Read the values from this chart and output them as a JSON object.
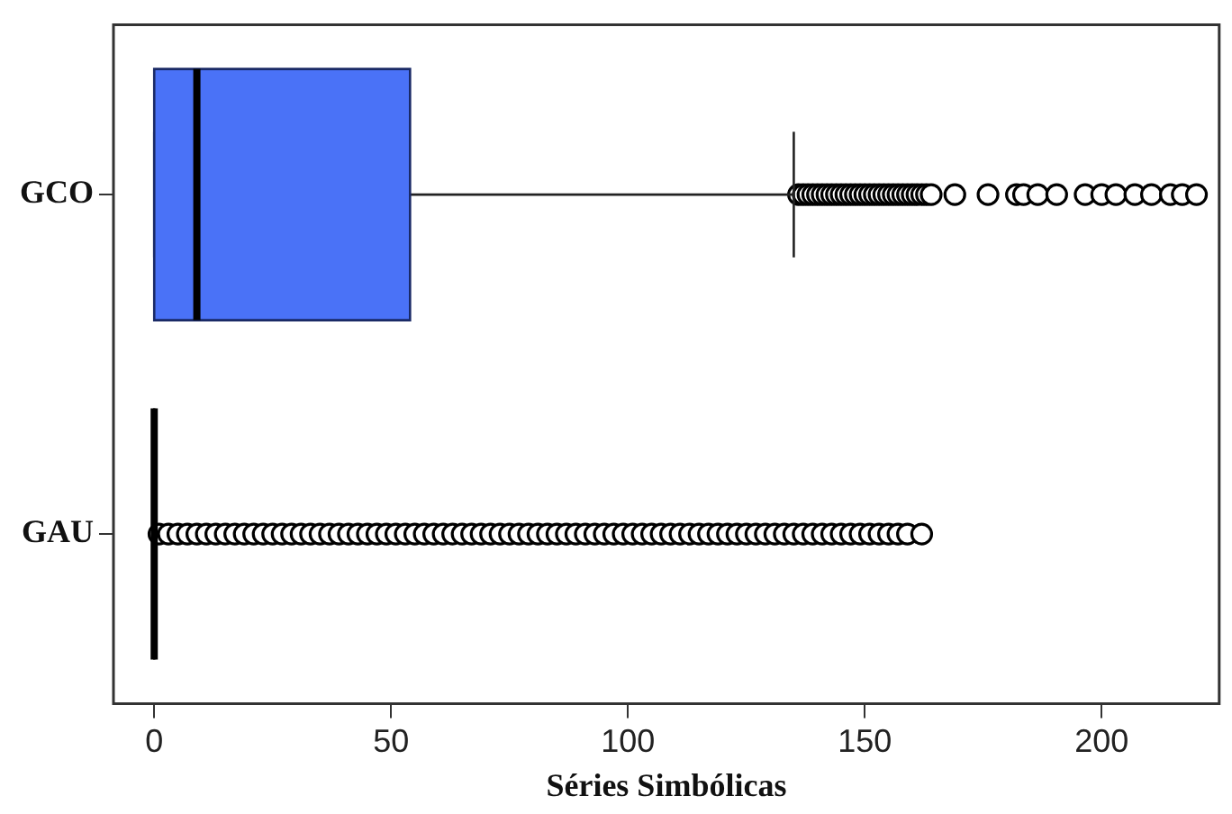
{
  "chart_data": {
    "type": "box",
    "orientation": "horizontal",
    "xlabel": "Séries Simbólicas",
    "categories": [
      "GCO",
      "GAU"
    ],
    "colors": [
      "#4a72f7",
      "#000000"
    ],
    "xlim": [
      -8.6,
      224.8
    ],
    "xticks": [
      0,
      50,
      100,
      150,
      200
    ],
    "grid": false,
    "legend": false,
    "marker": "circle",
    "boxes": [
      {
        "low": 0,
        "q1": 0,
        "median": 9,
        "q3": 54,
        "high": 135,
        "outliers": [
          136,
          137,
          138,
          139,
          140,
          141,
          142,
          143,
          144,
          145,
          146,
          147,
          148,
          149,
          150,
          151,
          152,
          153,
          154,
          155,
          156,
          157,
          158,
          159,
          160,
          161,
          162,
          163,
          164,
          169,
          176,
          182,
          183.5,
          186.5,
          190.5,
          196.5,
          200,
          203,
          207,
          210.5,
          214.5,
          217,
          220
        ]
      },
      {
        "low": 0,
        "q1": 0,
        "median": 0,
        "q3": 0,
        "high": 0,
        "outliers": [
          1,
          3,
          5,
          7,
          9,
          11,
          13,
          15,
          17,
          19,
          21,
          23,
          25,
          27,
          29,
          31,
          33,
          35,
          37,
          39,
          41,
          43,
          45,
          47,
          49,
          51,
          53,
          55,
          57,
          59,
          61,
          63,
          65,
          67,
          69,
          71,
          73,
          75,
          77,
          79,
          81,
          83,
          85,
          87,
          89,
          91,
          93,
          95,
          97,
          99,
          101,
          103,
          105,
          107,
          109,
          111,
          113,
          115,
          117,
          119,
          121,
          123,
          125,
          127,
          129,
          131,
          133,
          135,
          137,
          139,
          141,
          143,
          145,
          147,
          149,
          151,
          153,
          155,
          157,
          159,
          162
        ]
      }
    ]
  }
}
